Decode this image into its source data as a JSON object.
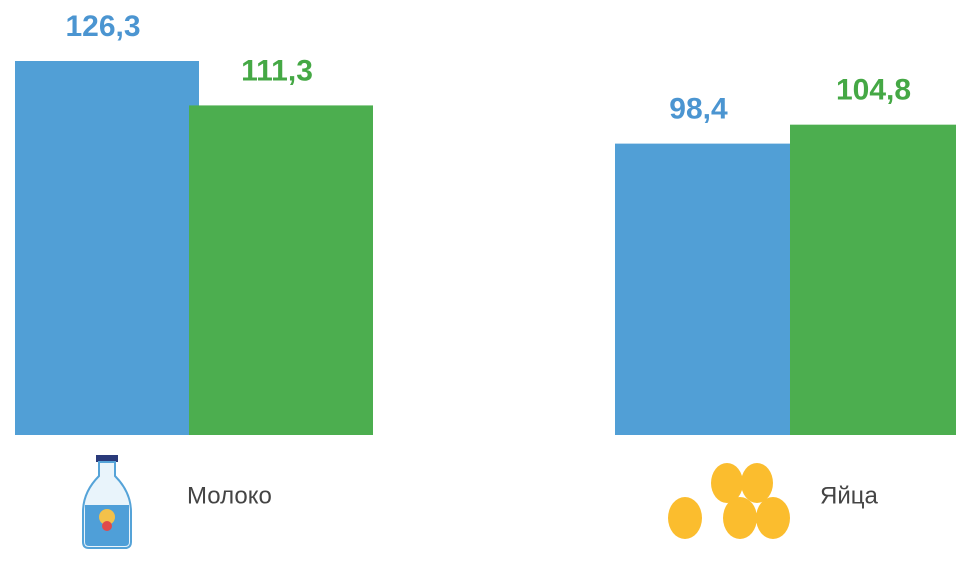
{
  "chart_data": {
    "type": "bar",
    "categories": [
      "Молоко",
      "Яйца"
    ],
    "series": [
      {
        "color": "#519fd6",
        "label_color": "#4b95d1",
        "values": [
          126.3,
          98.4
        ],
        "value_labels": [
          "126,3",
          "98,4"
        ]
      },
      {
        "color": "#4cae4f",
        "label_color": "#45a845",
        "values": [
          111.3,
          104.8
        ],
        "value_labels": [
          "111,3",
          "104,8"
        ]
      }
    ]
  }
}
